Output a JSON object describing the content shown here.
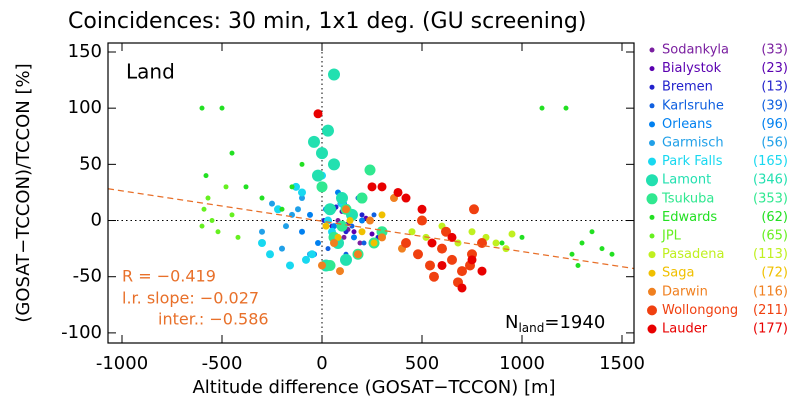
{
  "chart_data": {
    "type": "scatter",
    "title": "Coincidences: 30 min, 1x1 deg. (GU screening)",
    "x_label": "Altitude difference (GOSAT−TCCON) [m]",
    "y_label": "(GOSAT−TCCON)/TCCON [%]",
    "panel_label": "Land",
    "annotations": [
      "R = −0.419",
      "l.r. slope: −0.027",
      "inter.: −0.586"
    ],
    "fit": {
      "slope": -0.027,
      "intercept": -0.586,
      "color": "#e8702a"
    },
    "n_label": {
      "symbol": "N",
      "subscript": "land",
      "text": "=1940"
    },
    "xlim": [
      -1070,
      1560
    ],
    "ylim": [
      -109,
      158
    ],
    "xticks": [
      -1000,
      -500,
      0,
      500,
      1000,
      1500
    ],
    "yticks": [
      -100,
      -50,
      0,
      50,
      100,
      150
    ],
    "series": [
      {
        "name": "Sodankyla",
        "color": "#7a1fa0",
        "count": 33,
        "count_label": "(33)",
        "size": 2.5,
        "x": [
          20,
          60,
          110,
          150,
          190,
          80,
          130
        ],
        "values": [
          -5,
          10,
          -15,
          5,
          -20,
          0,
          -8
        ]
      },
      {
        "name": "Bialystok",
        "color": "#5a00b0",
        "count": 23,
        "count_label": "(23)",
        "size": 2.5,
        "x": [
          50,
          100,
          160,
          220,
          250,
          130
        ],
        "values": [
          -5,
          8,
          -10,
          2,
          -12,
          -3
        ]
      },
      {
        "name": "Bremen",
        "color": "#2222cc",
        "count": 13,
        "count_label": "(13)",
        "size": 2.5,
        "x": [
          10,
          120,
          200,
          280,
          70
        ],
        "values": [
          0,
          -10,
          5,
          -15,
          12
        ]
      },
      {
        "name": "Karlsruhe",
        "color": "#1060e0",
        "count": 39,
        "count_label": "(39)",
        "size": 2.5,
        "x": [
          30,
          90,
          150,
          210,
          260,
          300,
          180,
          120
        ],
        "values": [
          -25,
          15,
          -5,
          -20,
          5,
          -10,
          20,
          -30
        ]
      },
      {
        "name": "Orleans",
        "color": "#0080f0",
        "count": 96,
        "count_label": "(96)",
        "size": 3,
        "x": [
          -100,
          -60,
          -20,
          20,
          60,
          110,
          160,
          200,
          -40,
          80
        ],
        "values": [
          -10,
          5,
          -20,
          10,
          -5,
          15,
          -15,
          0,
          -30,
          25
        ]
      },
      {
        "name": "Garmisch",
        "color": "#20a0e8",
        "count": 56,
        "count_label": "(56)",
        "size": 3,
        "x": [
          -300,
          -250,
          -200,
          -150,
          -100,
          -60,
          -180,
          -120
        ],
        "values": [
          -10,
          15,
          -25,
          5,
          20,
          -30,
          -5,
          10
        ]
      },
      {
        "name": "Park Falls",
        "color": "#18d8f0",
        "count": 165,
        "count_label": "(165)",
        "size": 4,
        "x": [
          -300,
          -220,
          -160,
          -100,
          -50,
          0,
          50,
          100,
          -260,
          -130,
          -80,
          30
        ],
        "values": [
          -20,
          10,
          -40,
          25,
          -30,
          40,
          -10,
          15,
          -30,
          30,
          -35,
          0
        ]
      },
      {
        "name": "Lamont",
        "color": "#22e0b0",
        "count": 346,
        "count_label": "(346)",
        "size": 6,
        "x": [
          60,
          30,
          0,
          -20,
          100,
          40,
          80,
          120,
          -40,
          20,
          150,
          60
        ],
        "values": [
          130,
          80,
          60,
          40,
          20,
          10,
          -20,
          -35,
          70,
          -40,
          5,
          50
        ]
      },
      {
        "name": "Tsukuba",
        "color": "#30e890",
        "count": 353,
        "count_label": "(353)",
        "size": 5.5,
        "x": [
          0,
          60,
          120,
          180,
          240,
          300,
          40,
          200,
          260,
          100
        ],
        "values": [
          30,
          -15,
          10,
          -30,
          45,
          -10,
          -40,
          20,
          -20,
          -5
        ]
      },
      {
        "name": "Edwards",
        "color": "#22e022",
        "count": 62,
        "count_label": "(62)",
        "size": 2.5,
        "x": [
          -600,
          -580,
          -500,
          -450,
          -380,
          -300,
          -200,
          -150,
          -100,
          1100,
          1220,
          1250,
          1280,
          1300,
          1350,
          1400,
          1450,
          900,
          1000
        ],
        "values": [
          100,
          40,
          100,
          60,
          30,
          20,
          10,
          30,
          50,
          100,
          100,
          -30,
          -40,
          -20,
          -10,
          -25,
          -30,
          -20,
          -15
        ]
      },
      {
        "name": "JPL",
        "color": "#66f020",
        "count": 65,
        "count_label": "(65)",
        "size": 2.5,
        "x": [
          -600,
          -590,
          -570,
          -550,
          -520,
          -480,
          -450,
          -420
        ],
        "values": [
          -5,
          10,
          20,
          0,
          -10,
          30,
          5,
          -15
        ]
      },
      {
        "name": "Pasadena",
        "color": "#c0f020",
        "count": 113,
        "count_label": "(113)",
        "size": 3.5,
        "x": [
          450,
          520,
          600,
          680,
          750,
          820,
          870,
          920,
          950
        ],
        "values": [
          -10,
          -15,
          -5,
          -20,
          -10,
          -15,
          -20,
          -25,
          -12
        ]
      },
      {
        "name": "Saga",
        "color": "#f0c000",
        "count": 72,
        "count_label": "(72)",
        "size": 3.5,
        "x": [
          20,
          80,
          140,
          200,
          260,
          300
        ],
        "values": [
          -5,
          -15,
          0,
          -10,
          -20,
          5
        ]
      },
      {
        "name": "Darwin",
        "color": "#f08020",
        "count": 116,
        "count_label": "(116)",
        "size": 4,
        "x": [
          0,
          60,
          120,
          180,
          240,
          300,
          360,
          400,
          90
        ],
        "values": [
          -40,
          -20,
          10,
          -30,
          0,
          -15,
          20,
          -25,
          -45
        ]
      },
      {
        "name": "Wollongong",
        "color": "#f04010",
        "count": 211,
        "count_label": "(211)",
        "size": 5,
        "x": [
          420,
          480,
          540,
          600,
          650,
          700,
          750,
          800,
          560,
          620,
          680,
          740,
          500,
          760
        ],
        "values": [
          -20,
          -30,
          -40,
          -25,
          -35,
          -45,
          -30,
          -20,
          -50,
          -10,
          -55,
          -40,
          0,
          10
        ]
      },
      {
        "name": "Lauder",
        "color": "#e80000",
        "count": 177,
        "count_label": "(177)",
        "size": 4.5,
        "x": [
          -20,
          250,
          300,
          420,
          500,
          550,
          600,
          700,
          750,
          800,
          650,
          380
        ],
        "values": [
          95,
          30,
          30,
          20,
          10,
          -20,
          -40,
          -60,
          -35,
          -45,
          -15,
          25
        ]
      }
    ]
  }
}
